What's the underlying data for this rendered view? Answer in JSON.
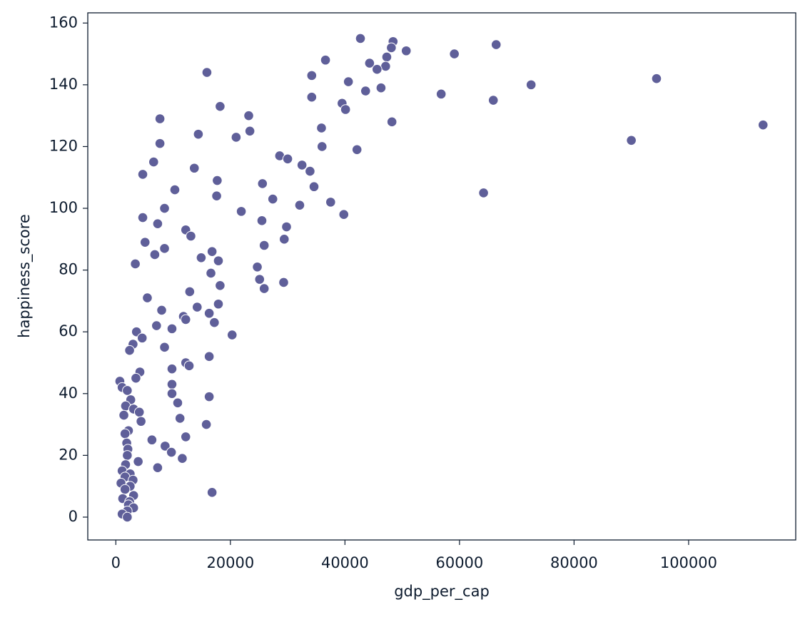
{
  "chart_data": {
    "type": "scatter",
    "x_label": "gdp_per_cap",
    "y_label": "happiness_score",
    "color": "#5f5f99",
    "x": [
      42700,
      48400,
      66400,
      48100,
      50700,
      59100,
      47300,
      36600,
      44300,
      47100,
      45600,
      15900,
      34200,
      94400,
      40600,
      72500,
      46300,
      43600,
      56800,
      34200,
      65900,
      39500,
      18200,
      40100,
      23200,
      7700,
      48200,
      113000,
      35900,
      23400,
      14400,
      21000,
      90000,
      7700,
      36000,
      42100,
      28600,
      30000,
      6600,
      32500,
      13700,
      33900,
      4700,
      17700,
      25600,
      34600,
      10300,
      64200,
      17600,
      27400,
      37500,
      32100,
      8500,
      21900,
      39800,
      4700,
      25500,
      7300,
      29800,
      12200,
      13100,
      29400,
      5100,
      25900,
      8500,
      16800,
      6800,
      14900,
      17900,
      3400,
      24700,
      16600,
      25100,
      29300,
      18200,
      25900,
      12900,
      5500,
      17900,
      14200,
      8000,
      16300,
      11800,
      12200,
      17200,
      7100,
      9800,
      3600,
      20300,
      4600,
      3000,
      8500,
      2400,
      16300,
      12200,
      12800,
      9800,
      4200,
      3500,
      700,
      9800,
      1100,
      2000,
      9800,
      16300,
      2600,
      10800,
      1700,
      3100,
      4100,
      1400,
      11200,
      4400,
      15800,
      2200,
      1600,
      12200,
      6300,
      1900,
      8600,
      2100,
      9700,
      2000,
      11600,
      3900,
      1700,
      7300,
      1100,
      2500,
      1600,
      3000,
      900,
      2500,
      1600,
      16800,
      3100,
      1200,
      2400,
      2200,
      3100,
      2000,
      1100,
      2000
    ],
    "values": [
      155,
      154,
      153,
      152,
      151,
      150,
      149,
      148,
      147,
      146,
      145,
      144,
      143,
      142,
      141,
      140,
      139,
      138,
      137,
      136,
      135,
      134,
      133,
      132,
      130,
      129,
      128,
      127,
      126,
      125,
      124,
      123,
      122,
      121,
      120,
      119,
      117,
      116,
      115,
      114,
      113,
      112,
      111,
      109,
      108,
      107,
      106,
      105,
      104,
      103,
      102,
      101,
      100,
      99,
      98,
      97,
      96,
      95,
      94,
      93,
      91,
      90,
      89,
      88,
      87,
      86,
      85,
      84,
      83,
      82,
      81,
      79,
      77,
      76,
      75,
      74,
      73,
      71,
      69,
      68,
      67,
      66,
      65,
      64,
      63,
      62,
      61,
      60,
      59,
      58,
      56,
      55,
      54,
      52,
      50,
      49,
      48,
      47,
      45,
      44,
      43,
      42,
      41,
      40,
      39,
      38,
      37,
      36,
      35,
      34,
      33,
      32,
      31,
      30,
      28,
      27,
      26,
      25,
      24,
      23,
      22,
      21,
      20,
      19,
      18,
      17,
      16,
      15,
      14,
      13,
      12,
      11,
      10,
      9,
      8,
      7,
      6,
      5,
      4,
      3,
      2,
      1,
      0
    ],
    "xlim": [
      -4900,
      118700
    ],
    "ylim": [
      -7.4,
      163.3
    ],
    "xticks": [
      0,
      20000,
      40000,
      60000,
      80000,
      100000
    ],
    "yticks": [
      0,
      20,
      40,
      60,
      80,
      100,
      120,
      140,
      160
    ]
  }
}
